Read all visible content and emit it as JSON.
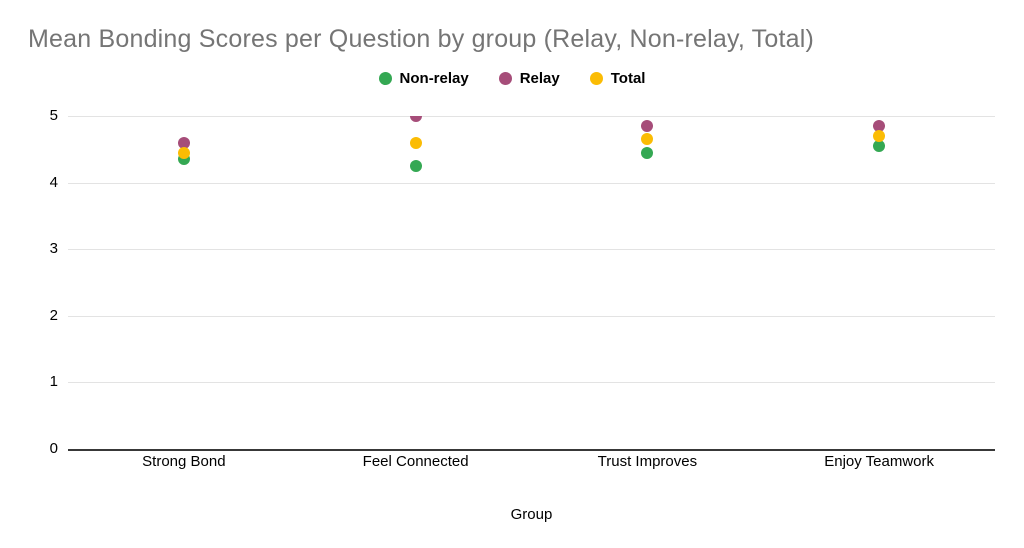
{
  "title": "Mean Bonding Scores per Question by group (Relay, Non-relay, Total)",
  "chart_data": {
    "type": "scatter",
    "categories": [
      "Strong Bond",
      "Feel Connected",
      "Trust Improves",
      "Enjoy Teamwork"
    ],
    "series": [
      {
        "name": "Non-relay",
        "color": "#34A853",
        "values": [
          4.35,
          4.25,
          4.45,
          4.55
        ]
      },
      {
        "name": "Relay",
        "color": "#A64D79",
        "values": [
          4.6,
          5.0,
          4.85,
          4.85
        ]
      },
      {
        "name": "Total",
        "color": "#FBBC04",
        "values": [
          4.45,
          4.6,
          4.65,
          4.7
        ]
      }
    ],
    "xlabel": "Group",
    "ylabel": "",
    "ylim": [
      0,
      5
    ],
    "yticks": [
      0,
      1,
      2,
      3,
      4,
      5
    ],
    "grid": true,
    "legend_position": "top"
  },
  "colors": {
    "background": "#ffffff",
    "title_text": "#757575",
    "gridline": "#e3e3e3",
    "axis_line": "#383838",
    "label_text": "#000000"
  }
}
